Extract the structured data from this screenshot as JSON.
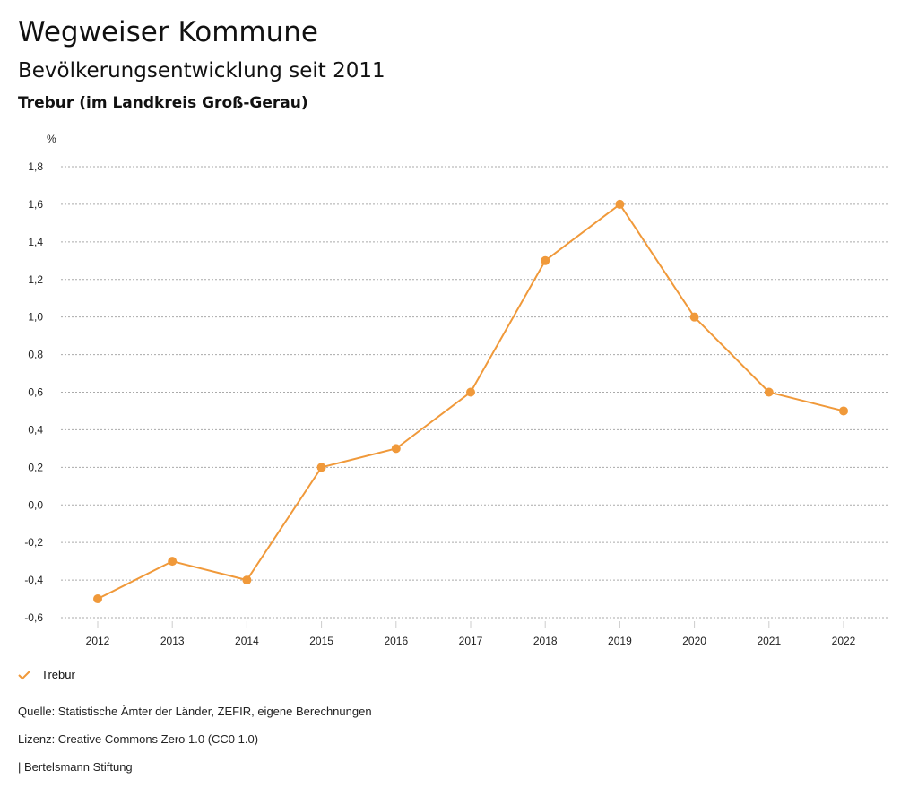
{
  "header": {
    "title": "Wegweiser Kommune",
    "subtitle": "Bevölkerungsentwicklung seit 2011",
    "region": "Trebur (im Landkreis Groß-Gerau)"
  },
  "chart_data": {
    "type": "line",
    "title": "Bevölkerungsentwicklung seit 2011",
    "ylabel": "%",
    "xlabel": "",
    "x": [
      "2012",
      "2013",
      "2014",
      "2015",
      "2016",
      "2017",
      "2018",
      "2019",
      "2020",
      "2021",
      "2022"
    ],
    "series": [
      {
        "name": "Trebur",
        "values": [
          -0.5,
          -0.3,
          -0.4,
          0.2,
          0.3,
          0.6,
          1.3,
          1.6,
          1.0,
          0.6,
          0.5
        ],
        "color": "#f0993a"
      }
    ],
    "ylim": [
      -0.6,
      1.8
    ],
    "yticks": [
      "-0,6",
      "-0,4",
      "-0,2",
      "0,0",
      "0,2",
      "0,4",
      "0,6",
      "0,8",
      "1,0",
      "1,2",
      "1,4",
      "1,6",
      "1,8"
    ],
    "ytick_values": [
      -0.6,
      -0.4,
      -0.2,
      0,
      0.2,
      0.4,
      0.6,
      0.8,
      1.0,
      1.2,
      1.4,
      1.6,
      1.8
    ],
    "grid": true,
    "legend": "bottom-left"
  },
  "legend": {
    "label": "Trebur"
  },
  "footer": {
    "source": "Quelle: Statistische Ämter der Länder, ZEFIR, eigene Berechnungen",
    "license": "Lizenz: Creative Commons Zero 1.0 (CC0 1.0)",
    "credit": "| Bertelsmann Stiftung"
  }
}
